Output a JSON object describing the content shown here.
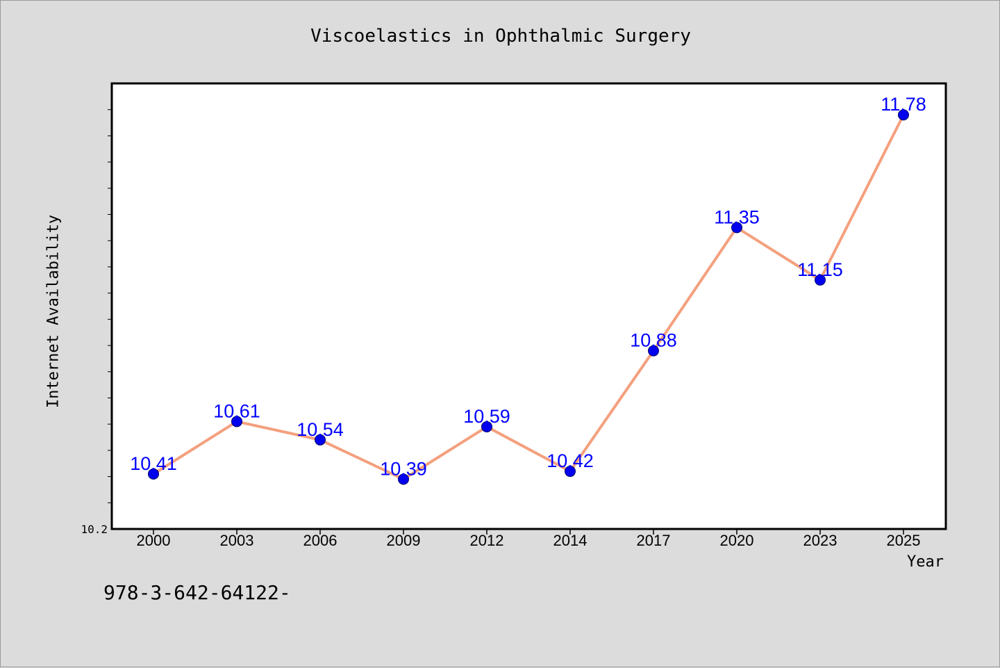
{
  "chart_data": {
    "type": "line",
    "title": "Viscoelastics in Ophthalmic Surgery",
    "xlabel": "Year",
    "ylabel": "Internet Availability",
    "categories": [
      "2000",
      "2003",
      "2006",
      "2009",
      "2012",
      "2014",
      "2017",
      "2020",
      "2023",
      "2025"
    ],
    "values": [
      10.41,
      10.61,
      10.54,
      10.39,
      10.59,
      10.42,
      10.88,
      11.35,
      11.15,
      11.78
    ],
    "data_labels": [
      "10.41",
      "10.61",
      "10.54",
      "10.39",
      "10.59",
      "10.42",
      "10.88",
      "11.35",
      "11.15",
      "11.78"
    ],
    "y_tick_labels": [
      "10.2"
    ],
    "ylim": [
      10.2,
      11.9
    ],
    "grid": false,
    "colors": {
      "line": "#f4a07e",
      "marker": "#0000ee",
      "label": "#0000ff"
    }
  },
  "footer_text": "978-3-642-64122-"
}
